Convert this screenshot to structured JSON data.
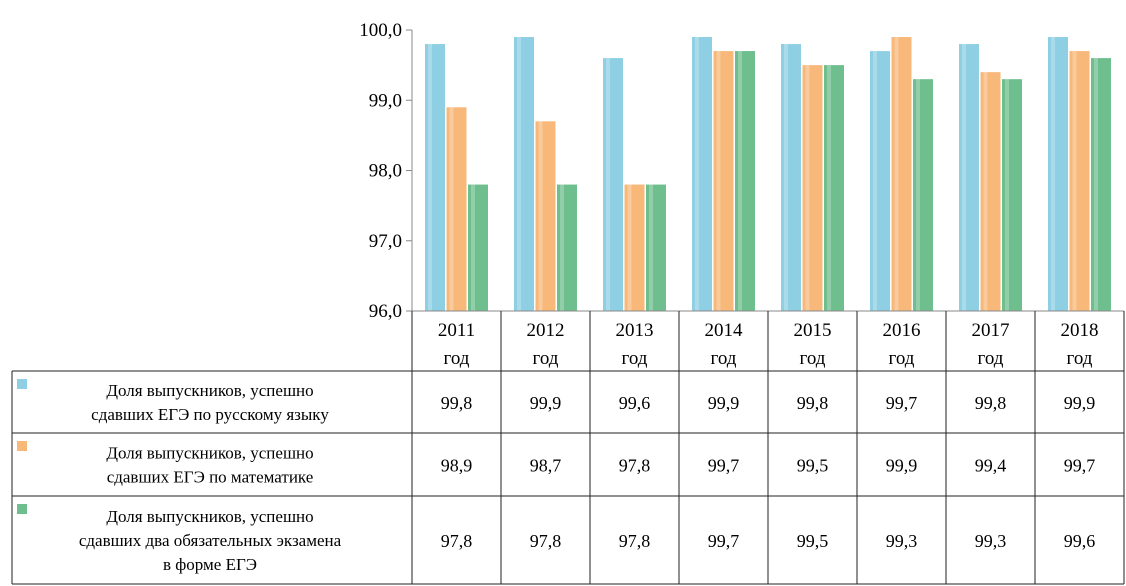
{
  "chart_data": {
    "type": "bar",
    "categories": [
      "2011 год",
      "2012 год",
      "2013 год",
      "2014 год",
      "2015 год",
      "2016 год",
      "2017 год",
      "2018 год"
    ],
    "category_lines": [
      [
        "2011",
        "год"
      ],
      [
        "2012",
        "год"
      ],
      [
        "2013",
        "год"
      ],
      [
        "2014",
        "год"
      ],
      [
        "2015",
        "год"
      ],
      [
        "2016",
        "год"
      ],
      [
        "2017",
        "год"
      ],
      [
        "2018",
        "год"
      ]
    ],
    "ylim": [
      96.0,
      100.0
    ],
    "yticks": [
      "96,0",
      "97,0",
      "98,0",
      "99,0",
      "100,0"
    ],
    "ytick_values": [
      96,
      97,
      98,
      99,
      100
    ],
    "series": [
      {
        "name": "Доля выпускников, успешно сдавших ЕГЭ по русскому языку",
        "name_lines": [
          "Доля выпускников, успешно",
          "сдавших ЕГЭ по русскому языку"
        ],
        "color": "#8ECFE3",
        "values": [
          99.8,
          99.9,
          99.6,
          99.9,
          99.8,
          99.7,
          99.8,
          99.9
        ],
        "labels": [
          "99,8",
          "99,9",
          "99,6",
          "99,9",
          "99,8",
          "99,7",
          "99,8",
          "99,9"
        ]
      },
      {
        "name": "Доля выпускников, успешно сдавших ЕГЭ по математике",
        "name_lines": [
          "Доля выпускников, успешно",
          "сдавших ЕГЭ по математике"
        ],
        "color": "#F7B87A",
        "values": [
          98.9,
          98.7,
          97.8,
          99.7,
          99.5,
          99.9,
          99.4,
          99.7
        ],
        "labels": [
          "98,9",
          "98,7",
          "97,8",
          "99,7",
          "99,5",
          "99,9",
          "99,4",
          "99,7"
        ]
      },
      {
        "name": "Доля выпускников, успешно сдавших два обязательных экзамена в форме ЕГЭ",
        "name_lines": [
          "Доля выпускников, успешно",
          "сдавших два обязательных экзамена",
          "в форме ЕГЭ"
        ],
        "color": "#6FBE8E",
        "values": [
          97.8,
          97.8,
          97.8,
          99.7,
          99.5,
          99.3,
          99.3,
          99.6
        ],
        "labels": [
          "97,8",
          "97,8",
          "97,8",
          "99,7",
          "99,5",
          "99,3",
          "99,3",
          "99,6"
        ]
      }
    ],
    "grid": false,
    "legend": "data-table"
  }
}
